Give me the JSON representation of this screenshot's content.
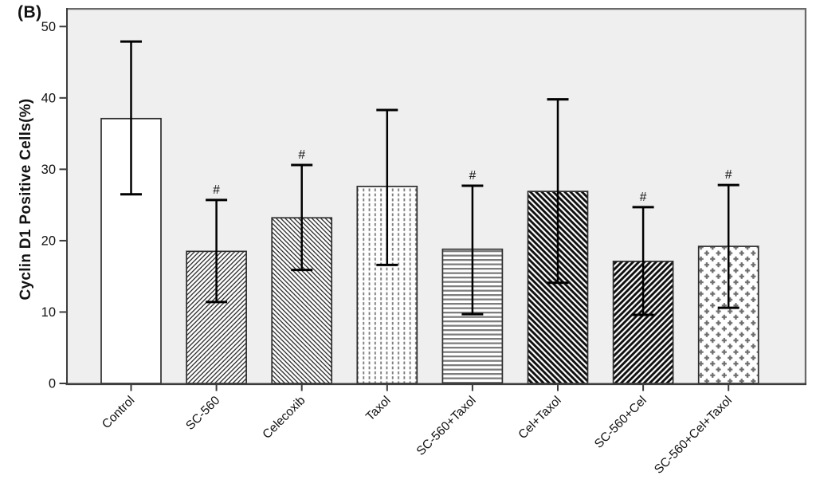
{
  "panel_label": "(B)",
  "chart_data": {
    "type": "bar",
    "title": "",
    "ylabel": "Cyclin D1 Positive Cells(%)",
    "categories": [
      "Control",
      "SC-560",
      "Celecoxib",
      "Taxol",
      "SC-560+Taxol",
      "Cel+Taxol",
      "SC-560+Cel",
      "SC-560+Cel+Taxol"
    ],
    "values": [
      37.1,
      18.5,
      23.2,
      27.6,
      18.8,
      26.9,
      17.1,
      19.2
    ],
    "error_upper": [
      47.9,
      25.7,
      30.6,
      38.3,
      27.7,
      39.8,
      24.7,
      27.8
    ],
    "error_lower": [
      26.5,
      11.4,
      15.9,
      16.6,
      9.7,
      14.1,
      9.6,
      10.6
    ],
    "significance": [
      "",
      "#",
      "#",
      "",
      "#",
      "",
      "#",
      "#"
    ],
    "bar_patterns": [
      "solid-white",
      "thin-diagonal-forward",
      "thin-diagonal-back",
      "vertical-dashed",
      "horizontal-lines",
      "bold-diagonal-back",
      "bold-diagonal-forward",
      "plus-checker"
    ],
    "yticks": [
      0,
      10,
      20,
      30,
      40,
      50
    ],
    "ylim": [
      0,
      52.6
    ],
    "grid": false,
    "legend_position": "none",
    "plot_background": "#efefef",
    "plot_border_color": "#6a6a6a",
    "axis_color": "#3c3c3c",
    "bar_outline": "#2e2e2e",
    "error_bar_color": "#000000",
    "hatch_dark": "#222222",
    "hatch_gray": "#7d7d7d"
  }
}
